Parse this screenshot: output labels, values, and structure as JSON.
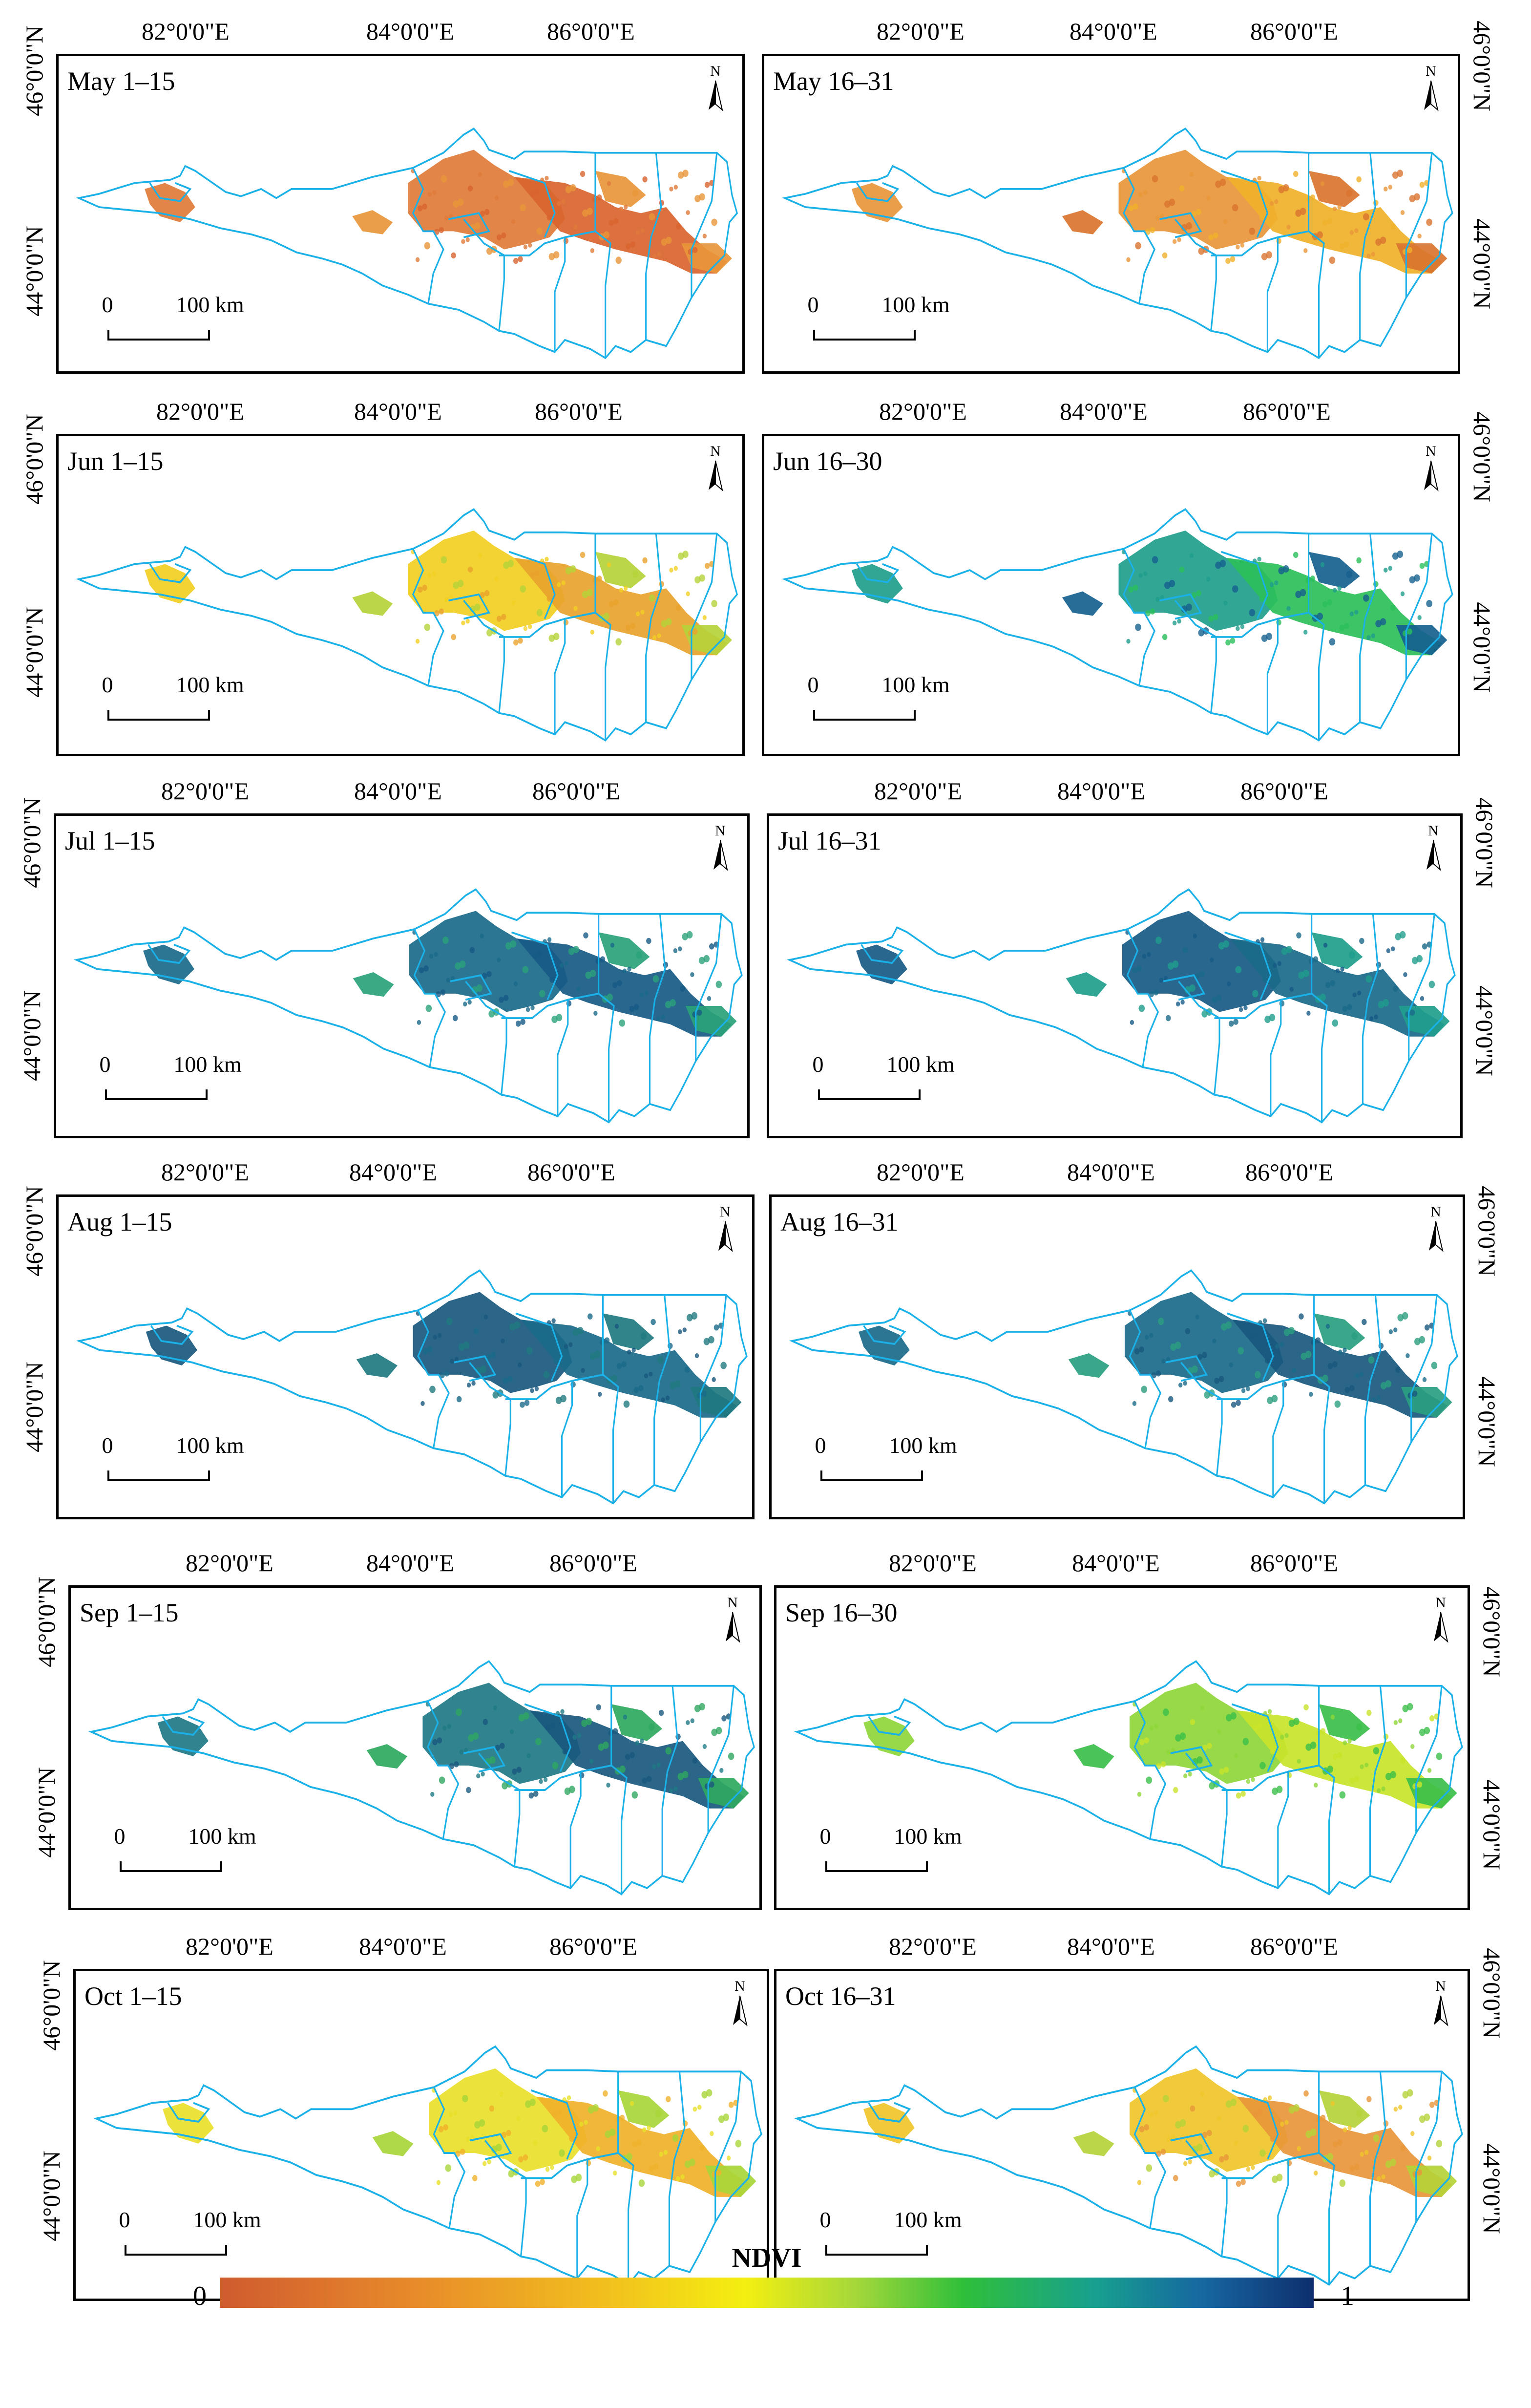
{
  "figure": {
    "lon_labels": [
      "82°0'0\"E",
      "84°0'0\"E",
      "86°0'0\"E"
    ],
    "lat_labels": [
      "46°0'0\"N",
      "44°0'0\"N"
    ],
    "scale_zero": "0",
    "scale_text": "100 km",
    "north_label": "N",
    "boundary_color": "#1ab0e8"
  },
  "panels": [
    {
      "title": "May 1–15",
      "fills": [
        "#e07b3a",
        "#d9642f",
        "#e8963a"
      ]
    },
    {
      "title": "May 16–31",
      "fills": [
        "#e8963a",
        "#f0b12a",
        "#d9742f"
      ]
    },
    {
      "title": "Jun 1–15",
      "fills": [
        "#f2cf22",
        "#e8a32d",
        "#b5d33a"
      ]
    },
    {
      "title": "Jun 16–30",
      "fills": [
        "#1f9e8c",
        "#2bbf5a",
        "#16608f"
      ]
    },
    {
      "title": "Jul 1–15",
      "fills": [
        "#1a6a8a",
        "#175a86",
        "#2aa37a"
      ]
    },
    {
      "title": "Jul 16–31",
      "fills": [
        "#175a86",
        "#1a6a8a",
        "#1f9e8c"
      ]
    },
    {
      "title": "Aug 1–15",
      "fills": [
        "#19587e",
        "#1a6a8a",
        "#207a80"
      ]
    },
    {
      "title": "Aug 16–31",
      "fills": [
        "#1a6a8a",
        "#19587e",
        "#2a9f80"
      ]
    },
    {
      "title": "Sep 1–15",
      "fills": [
        "#1f7a86",
        "#19587e",
        "#2fa860"
      ]
    },
    {
      "title": "Sep 16–30",
      "fills": [
        "#8fd63a",
        "#c9e42a",
        "#3bbf4a"
      ]
    },
    {
      "title": "Oct 1–15",
      "fills": [
        "#e9e02a",
        "#f0b12a",
        "#a8d63a"
      ]
    },
    {
      "title": "Oct 16–31",
      "fills": [
        "#f0c62a",
        "#e8963a",
        "#b5d33a"
      ]
    }
  ],
  "legend": {
    "title": "NDVI",
    "min": "0",
    "max": "1"
  }
}
